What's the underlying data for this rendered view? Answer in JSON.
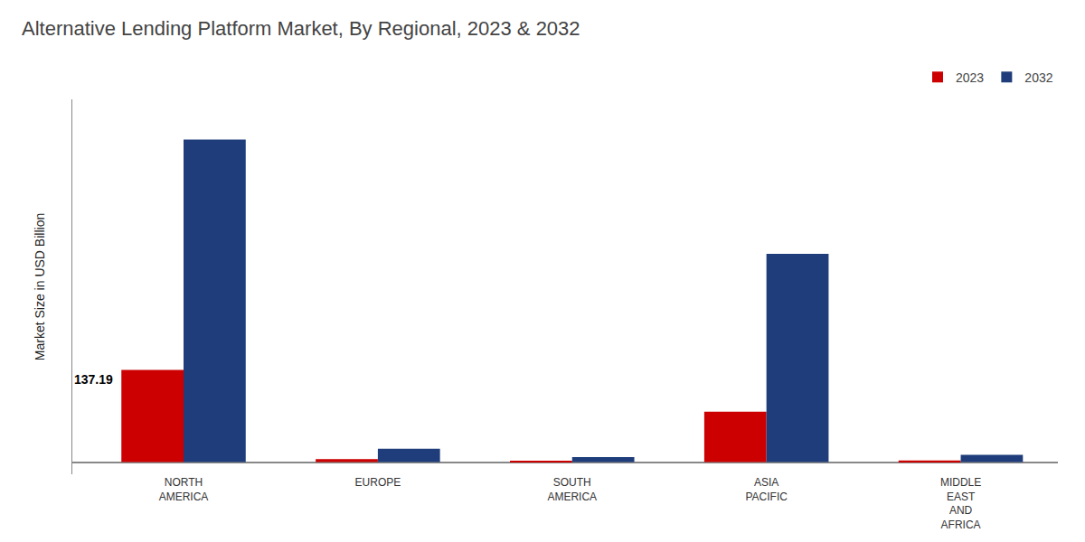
{
  "chart_data": {
    "type": "bar",
    "title": "Alternative Lending Platform Market, By Regional, 2023 & 2032",
    "ylabel": "Market Size in USD Billion",
    "categories": [
      "NORTH\nAMERICA",
      "EUROPE",
      "SOUTH\nAMERICA",
      "ASIA\nPACIFIC",
      "MIDDLE\nEAST\nAND\nAFRICA"
    ],
    "series": [
      {
        "name": "2023",
        "color": "#cc0000",
        "values": [
          137.19,
          4.5,
          1.8,
          75.0,
          2.5
        ]
      },
      {
        "name": "2032",
        "color": "#1f3d7a",
        "values": [
          480.0,
          20.0,
          7.5,
          310.0,
          11.0
        ]
      }
    ],
    "ylim": [
      -18,
      540
    ],
    "tick_labels": "x",
    "grid": false,
    "legend": "top",
    "annotations": [
      {
        "text": "137.19",
        "x": "NORTH\nAMERICA",
        "y": 137.19
      }
    ]
  }
}
